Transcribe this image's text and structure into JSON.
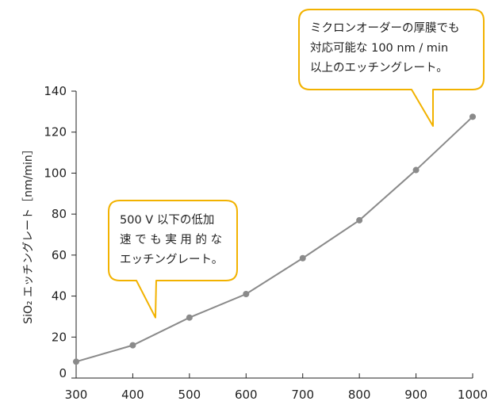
{
  "chart_data": {
    "type": "line",
    "x": [
      300,
      400,
      500,
      600,
      700,
      800,
      900,
      1000
    ],
    "series": [
      {
        "values": [
          8,
          16,
          29.5,
          41,
          58.5,
          77,
          101.5,
          127.5
        ]
      }
    ],
    "x_ticks": [
      "300",
      "400",
      "500",
      "600",
      "700",
      "800",
      "900",
      "1000"
    ],
    "y_ticks": [
      "0",
      "20",
      "40",
      "60",
      "80",
      "100",
      "120",
      "140"
    ],
    "xlim": [
      300,
      1000
    ],
    "ylim": [
      0,
      140
    ],
    "ylabel": "SiO₂ エッチングレート［nm/min］",
    "xlabel": "",
    "title": "",
    "grid": false,
    "line_color": "#8a8a8a",
    "marker_color": "#8a8a8a",
    "axis_color": "#222222",
    "annotations": [
      {
        "id": "low-power",
        "lines": [
          "500 V 以下の低加",
          "速 で も 実 用 的 な",
          "エッチングレート。"
        ],
        "pointer_x": 440,
        "pointer_y": 29.5
      },
      {
        "id": "high-rate",
        "lines": [
          "ミクロンオーダーの厚膜でも",
          "対応可能な 100 nm / min",
          "以上のエッチングレート。"
        ],
        "pointer_x": 930,
        "pointer_y": 123
      }
    ],
    "callout_border": "#f2b200",
    "callout_fill": "#ffffff"
  }
}
